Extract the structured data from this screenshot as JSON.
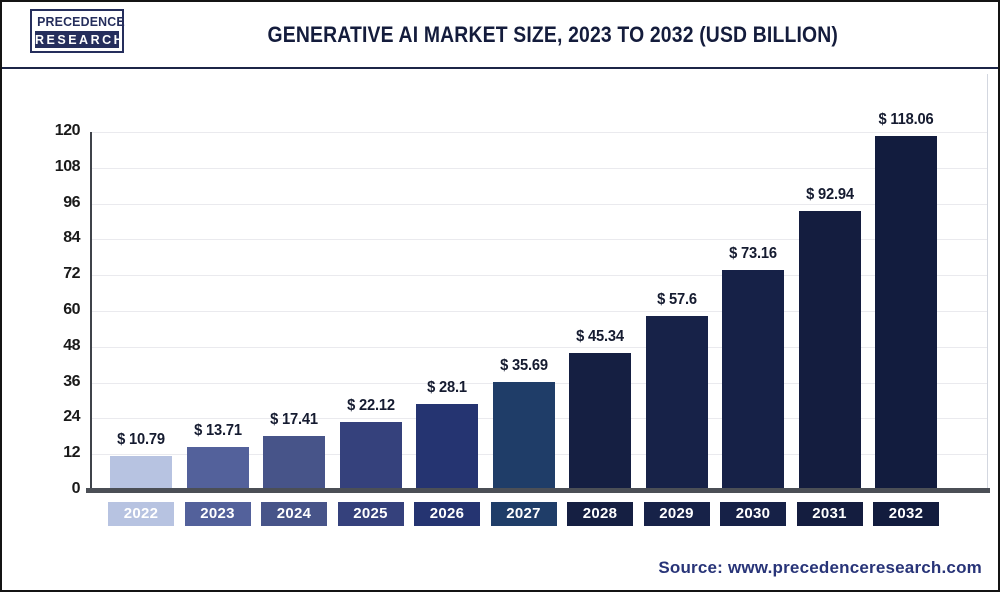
{
  "header": {
    "logo_line1": "PRECEDENCE",
    "logo_line2": "RESEARCH",
    "title": "GENERATIVE AI MARKET SIZE, 2023 TO 2032 (USD BILLION)"
  },
  "chart_data": {
    "type": "bar",
    "title": "Generative AI Market Size, 2023 to 2032 (USD Billion)",
    "unit": "USD Billion",
    "categories": [
      "2022",
      "2023",
      "2024",
      "2025",
      "2026",
      "2027",
      "2028",
      "2029",
      "2030",
      "2031",
      "2032"
    ],
    "values": [
      10.79,
      13.71,
      17.41,
      22.12,
      28.1,
      35.69,
      45.34,
      57.6,
      73.16,
      92.94,
      118.06
    ],
    "value_labels": [
      "$ 10.79",
      "$ 13.71",
      "$ 17.41",
      "$ 22.12",
      "$ 28.1",
      "$ 35.69",
      "$ 45.34",
      "$ 57.6",
      "$ 73.16",
      "$ 92.94",
      "$ 118.06"
    ],
    "bar_colors": [
      "#b7c3e1",
      "#53619b",
      "#475489",
      "#35417c",
      "#253471",
      "#1f3d68",
      "#151f42",
      "#172248",
      "#162147",
      "#141d3f",
      "#121c3e"
    ],
    "xlabel": "",
    "ylabel": "",
    "ylim": [
      0,
      120
    ],
    "yticks": [
      0,
      12,
      24,
      36,
      48,
      60,
      72,
      84,
      96,
      108,
      120
    ],
    "grid": true,
    "legend": "none"
  },
  "footer": {
    "source": "Source: www.precedenceresearch.com"
  }
}
